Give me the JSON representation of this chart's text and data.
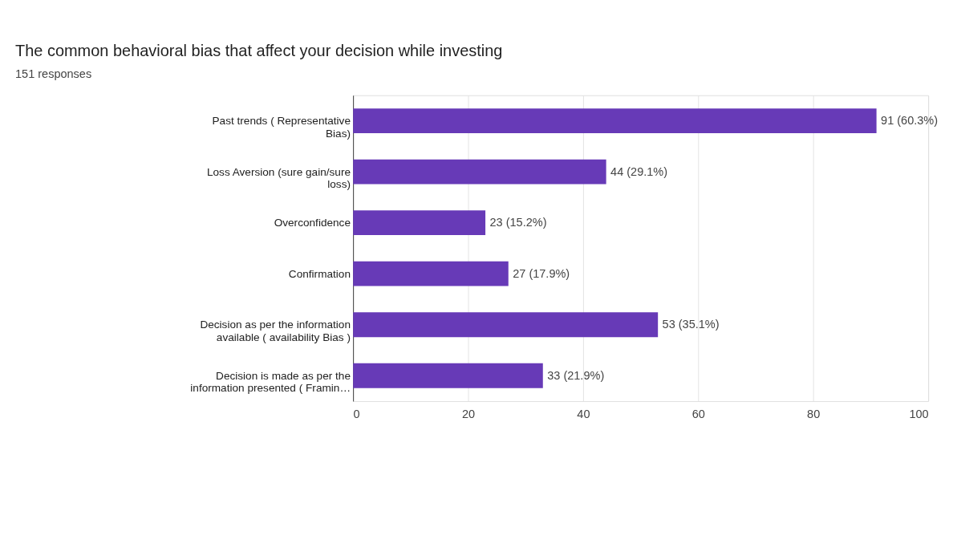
{
  "chart_data": {
    "type": "bar",
    "orientation": "horizontal",
    "title": "The common behavioral bias that affect your decision while investing",
    "subtitle": "151 responses",
    "categories": [
      "Past trends ( Representative Bias)",
      "Loss Aversion (sure gain/sure loss)",
      "Overconfidence",
      "Confirmation",
      "Decision as per the information available ( availability Bias )",
      "Decision is made as per the information presented ( Framin…"
    ],
    "values": [
      91,
      44,
      23,
      27,
      53,
      33
    ],
    "value_labels": [
      "91 (60.3%)",
      "44 (29.1%)",
      "23 (15.2%)",
      "27 (17.9%)",
      "53 (35.1%)",
      "33 (21.9%)"
    ],
    "color": "#673ab7",
    "xlim": [
      0,
      100
    ],
    "xticks": [
      0,
      20,
      40,
      60,
      80,
      100
    ],
    "grid": "x"
  }
}
